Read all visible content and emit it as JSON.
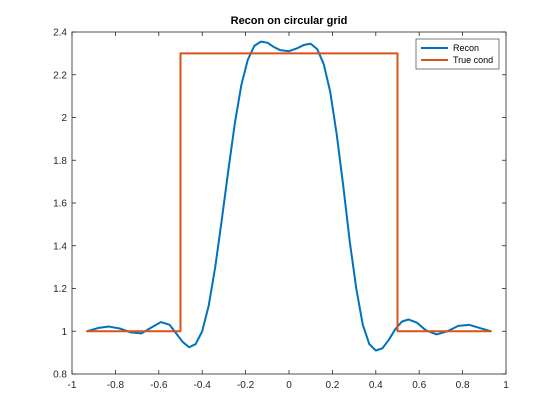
{
  "chart_data": {
    "type": "line",
    "title": "Recon on circular grid",
    "xlabel": "",
    "ylabel": "",
    "xlim": [
      -1,
      1
    ],
    "ylim": [
      0.8,
      2.4
    ],
    "xticks": [
      -1,
      -0.8,
      -0.6,
      -0.4,
      -0.2,
      0,
      0.2,
      0.4,
      0.6,
      0.8,
      1
    ],
    "xtick_labels": [
      "-1",
      "-0.8",
      "-0.6",
      "-0.4",
      "-0.2",
      "0",
      "0.2",
      "0.4",
      "0.6",
      "0.8",
      "1"
    ],
    "yticks": [
      0.8,
      1,
      1.2,
      1.4,
      1.6,
      1.8,
      2,
      2.2,
      2.4
    ],
    "ytick_labels": [
      "0.8",
      "1",
      "1.2",
      "1.4",
      "1.6",
      "1.8",
      "2",
      "2.2",
      "2.4"
    ],
    "grid": false,
    "legend_position": "top-right",
    "series": [
      {
        "name": "Recon",
        "color": "#0072BD",
        "x": [
          -0.93,
          -0.88,
          -0.83,
          -0.78,
          -0.73,
          -0.68,
          -0.63,
          -0.59,
          -0.55,
          -0.52,
          -0.49,
          -0.46,
          -0.43,
          -0.4,
          -0.37,
          -0.34,
          -0.31,
          -0.28,
          -0.25,
          -0.22,
          -0.19,
          -0.16,
          -0.13,
          -0.1,
          -0.07,
          -0.04,
          0,
          0.04,
          0.07,
          0.1,
          0.13,
          0.16,
          0.19,
          0.22,
          0.25,
          0.28,
          0.31,
          0.34,
          0.37,
          0.4,
          0.43,
          0.46,
          0.49,
          0.52,
          0.55,
          0.59,
          0.63,
          0.68,
          0.73,
          0.78,
          0.83,
          0.88,
          0.93
        ],
        "y": [
          1.0,
          1.015,
          1.022,
          1.013,
          0.995,
          0.99,
          1.02,
          1.043,
          1.03,
          0.99,
          0.95,
          0.925,
          0.94,
          1.0,
          1.12,
          1.3,
          1.52,
          1.75,
          1.97,
          2.15,
          2.27,
          2.335,
          2.355,
          2.35,
          2.33,
          2.315,
          2.31,
          2.325,
          2.34,
          2.345,
          2.32,
          2.25,
          2.12,
          1.92,
          1.68,
          1.42,
          1.2,
          1.03,
          0.94,
          0.91,
          0.92,
          0.96,
          1.01,
          1.045,
          1.055,
          1.04,
          1.005,
          0.985,
          1.0,
          1.025,
          1.03,
          1.015,
          1.0
        ]
      },
      {
        "name": "True cond",
        "color": "#D95319",
        "x": [
          -0.93,
          -0.5,
          -0.5,
          0.5,
          0.5,
          0.93
        ],
        "y": [
          1.0,
          1.0,
          2.3,
          2.3,
          1.0,
          1.0
        ]
      }
    ]
  }
}
